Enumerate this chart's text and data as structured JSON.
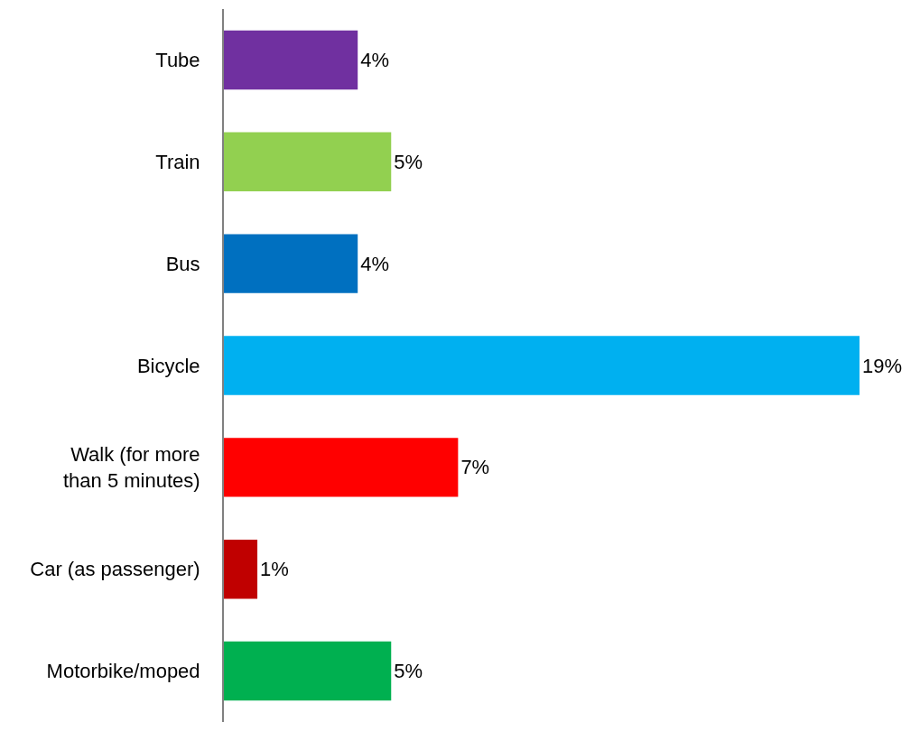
{
  "chart_data": {
    "type": "bar",
    "orientation": "horizontal",
    "categories": [
      "Tube",
      "Train",
      "Bus",
      "Bicycle",
      "Walk (for more than 5 minutes)",
      "Car (as passenger)",
      "Motorbike/moped"
    ],
    "values": [
      4,
      5,
      4,
      19,
      7,
      1,
      5
    ],
    "colors": [
      "#7030a0",
      "#92d050",
      "#0070c0",
      "#00b0f0",
      "#ff0000",
      "#c00000",
      "#00b050"
    ],
    "value_labels": [
      "4%",
      "5%",
      "4%",
      "19%",
      "7%",
      "1%",
      "5%"
    ]
  }
}
